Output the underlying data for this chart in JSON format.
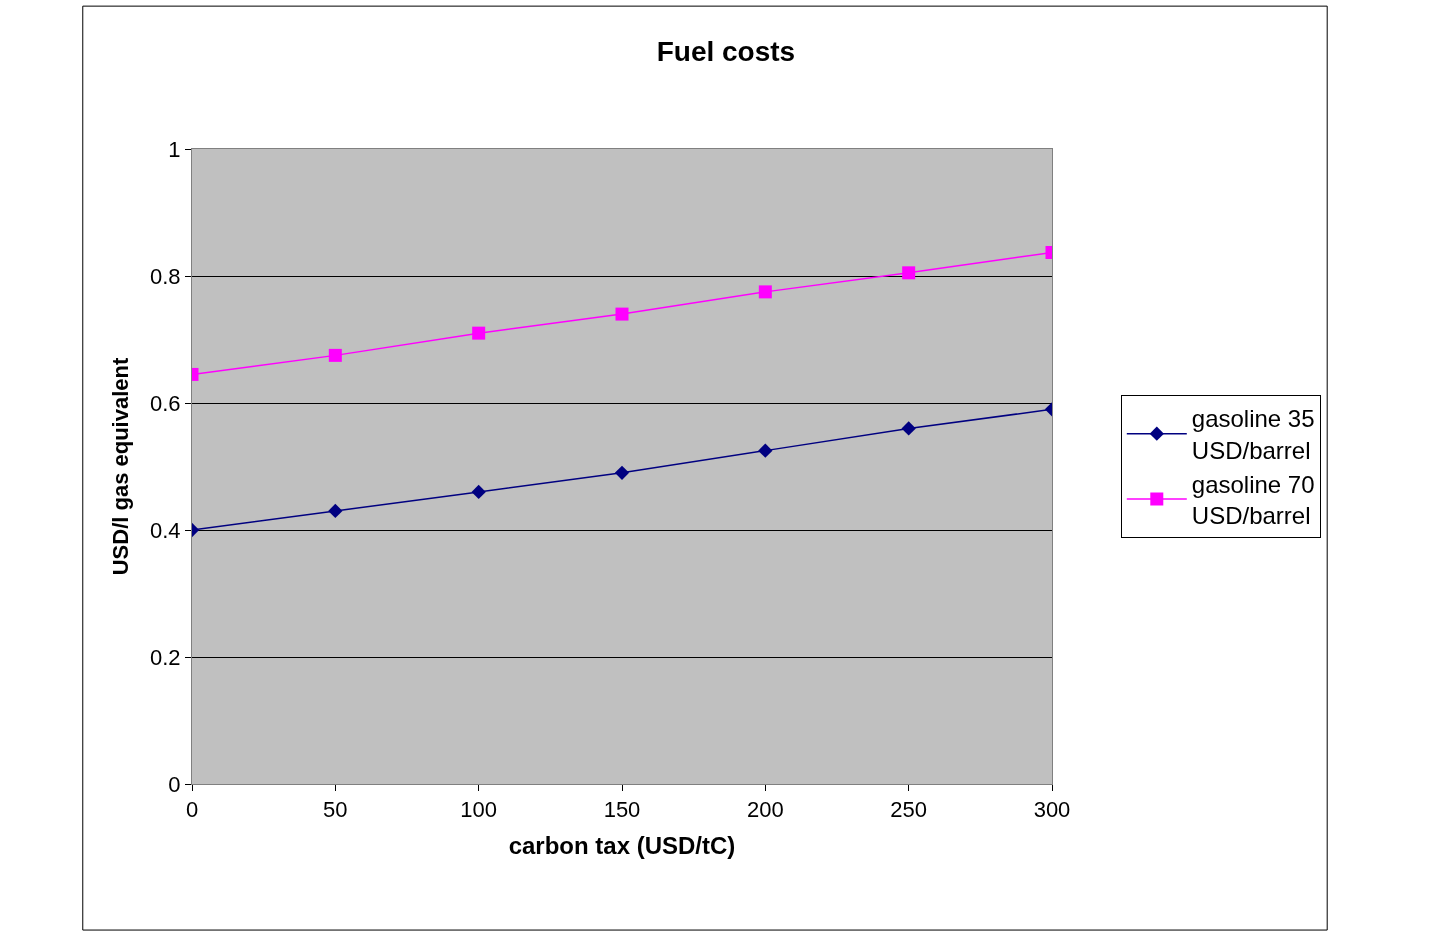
{
  "chart_data": {
    "type": "line",
    "title": "Fuel costs",
    "xlabel": "carbon tax (USD/tC)",
    "ylabel": "USD/l gas equivalent",
    "x": [
      0,
      50,
      100,
      150,
      200,
      250,
      300
    ],
    "series": [
      {
        "name": "gasoline 35 USD/barrel",
        "color": "#000080",
        "marker": "diamond",
        "values": [
          0.4,
          0.43,
          0.46,
          0.49,
          0.525,
          0.56,
          0.59
        ]
      },
      {
        "name": "gasoline 70 USD/barrel",
        "color": "#ff00ff",
        "marker": "square",
        "values": [
          0.645,
          0.675,
          0.71,
          0.74,
          0.775,
          0.805,
          0.837
        ]
      }
    ],
    "xlim": [
      0,
      300
    ],
    "xticks": [
      0,
      50,
      100,
      150,
      200,
      250,
      300
    ],
    "ylim": [
      0,
      1
    ],
    "yticks": [
      0,
      0.2,
      0.4,
      0.6,
      0.8,
      1
    ],
    "grid": "y",
    "legend": "right",
    "line_style": "solid"
  }
}
